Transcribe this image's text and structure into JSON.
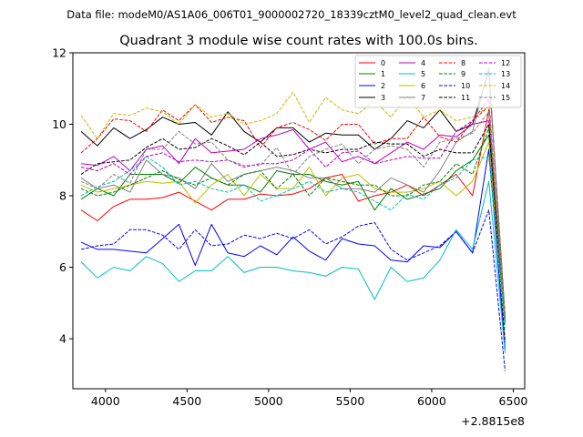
{
  "chart_data": {
    "type": "line",
    "file_label": "Data file: modeM0/AS1A06_006T01_9000002720_18339cztM0_level2_quad_clean.evt",
    "title": "Quadrant 3 module wise count rates with 100.0s bins.",
    "xlabel": "",
    "ylabel": "",
    "x_offset_label": "+2.8815e8",
    "xlim": [
      3800,
      6570
    ],
    "ylim": [
      2.6,
      12
    ],
    "x_ticks": [
      4000,
      4500,
      5000,
      5500,
      6000,
      6500
    ],
    "x_tick_labels": [
      "4000",
      "4500",
      "5000",
      "5500",
      "6000",
      "6500"
    ],
    "y_ticks": [
      4,
      6,
      8,
      10,
      12
    ],
    "y_tick_labels": [
      "4",
      "6",
      "8",
      "10",
      "12"
    ],
    "grid": false,
    "legend_position": "top-right",
    "x": [
      3850,
      3950,
      4050,
      4150,
      4250,
      4350,
      4450,
      4550,
      4650,
      4750,
      4850,
      4950,
      5050,
      5150,
      5250,
      5350,
      5450,
      5550,
      5650,
      5750,
      5850,
      5950,
      6050,
      6150,
      6250,
      6350,
      6450
    ],
    "series": [
      {
        "name": "0",
        "color": "#ff0000",
        "dash": "solid",
        "values": [
          7.6,
          7.3,
          7.7,
          7.9,
          7.9,
          7.95,
          8.1,
          7.85,
          7.6,
          7.9,
          7.9,
          8.05,
          8.0,
          8.05,
          8.2,
          8.5,
          8.6,
          7.85,
          8.0,
          8.1,
          8.3,
          8.0,
          8.3,
          8.6,
          8.0,
          10.4,
          4.5
        ]
      },
      {
        "name": "1",
        "color": "#008000",
        "dash": "solid",
        "values": [
          7.9,
          8.2,
          8.0,
          8.6,
          8.6,
          8.6,
          8.35,
          8.8,
          8.5,
          8.3,
          8.3,
          8.1,
          8.7,
          8.6,
          8.6,
          8.4,
          8.3,
          8.4,
          7.6,
          8.2,
          7.9,
          8.05,
          8.2,
          8.7,
          9.0,
          9.7,
          4.5
        ]
      },
      {
        "name": "2",
        "color": "#0000ff",
        "dash": "solid",
        "values": [
          6.7,
          6.5,
          6.5,
          6.45,
          6.4,
          6.8,
          7.2,
          6.05,
          7.2,
          6.4,
          6.3,
          6.6,
          6.35,
          6.85,
          6.45,
          6.2,
          6.8,
          6.65,
          6.6,
          6.2,
          6.15,
          6.6,
          6.55,
          7.0,
          6.4,
          9.3,
          3.7
        ]
      },
      {
        "name": "3",
        "color": "#000000",
        "dash": "solid",
        "values": [
          9.8,
          9.4,
          9.9,
          9.6,
          9.85,
          10.2,
          10.0,
          10.05,
          9.7,
          10.35,
          9.8,
          9.5,
          9.9,
          9.9,
          9.5,
          9.75,
          9.7,
          9.7,
          9.3,
          9.6,
          10.1,
          9.9,
          10.4,
          9.8,
          10.0,
          11.5,
          4.6
        ]
      },
      {
        "name": "4",
        "color": "#bf00bf",
        "dash": "solid",
        "values": [
          8.9,
          8.85,
          9.1,
          8.7,
          9.3,
          9.4,
          8.9,
          9.6,
          9.2,
          9.25,
          9.3,
          9.6,
          9.7,
          9.85,
          9.3,
          9.5,
          8.95,
          9.1,
          8.9,
          9.2,
          9.5,
          9.3,
          9.7,
          9.65,
          10.0,
          10.1,
          4.6
        ]
      },
      {
        "name": "5",
        "color": "#00bfbf",
        "dash": "solid",
        "values": [
          6.15,
          5.7,
          6.0,
          5.9,
          6.3,
          6.1,
          5.6,
          5.9,
          5.9,
          6.3,
          5.85,
          6.0,
          6.0,
          5.9,
          5.85,
          5.75,
          6.0,
          5.95,
          5.1,
          6.0,
          5.6,
          5.7,
          6.2,
          7.05,
          6.5,
          8.4,
          3.6
        ]
      },
      {
        "name": "6",
        "color": "#bfbf00",
        "dash": "solid",
        "values": [
          8.3,
          8.1,
          8.2,
          8.3,
          8.4,
          8.35,
          8.4,
          7.8,
          8.3,
          8.6,
          8.0,
          8.6,
          8.2,
          8.2,
          8.8,
          8.0,
          8.5,
          8.6,
          8.2,
          8.1,
          8.1,
          8.2,
          8.4,
          8.0,
          8.4,
          9.5,
          4.4
        ]
      },
      {
        "name": "7",
        "color": "#808080",
        "dash": "solid",
        "values": [
          8.5,
          8.2,
          8.3,
          8.1,
          9.0,
          8.6,
          8.5,
          8.2,
          8.9,
          8.4,
          8.6,
          8.7,
          8.8,
          8.7,
          8.5,
          8.5,
          8.2,
          8.2,
          8.1,
          8.5,
          8.3,
          8.1,
          8.7,
          9.5,
          9.8,
          11.6,
          4.5
        ]
      },
      {
        "name": "8",
        "color": "#ff0000",
        "dash": "dashed",
        "values": [
          9.2,
          9.6,
          10.15,
          10.1,
          9.8,
          10.4,
          10.1,
          10.55,
          10.05,
          10.2,
          10.1,
          9.35,
          9.9,
          10.05,
          9.85,
          9.55,
          10.0,
          10.0,
          9.45,
          9.6,
          9.6,
          10.2,
          9.65,
          9.5,
          10.1,
          10.5,
          4.5
        ]
      },
      {
        "name": "9",
        "color": "#008000",
        "dash": "dashed",
        "values": [
          8.2,
          8.0,
          8.1,
          8.3,
          8.5,
          8.7,
          8.45,
          8.3,
          8.5,
          8.3,
          8.6,
          8.7,
          8.2,
          8.6,
          8.0,
          8.5,
          8.4,
          8.3,
          8.3,
          8.0,
          8.0,
          8.3,
          8.4,
          8.9,
          8.6,
          9.9,
          4.4
        ]
      },
      {
        "name": "10",
        "color": "#0000ff",
        "dash": "dashed",
        "values": [
          6.5,
          6.6,
          6.65,
          7.05,
          7.05,
          6.9,
          6.5,
          7.05,
          6.6,
          6.65,
          6.9,
          6.8,
          6.95,
          6.8,
          7.05,
          6.65,
          6.85,
          7.15,
          7.25,
          6.5,
          6.2,
          6.4,
          6.6,
          7.0,
          6.4,
          7.6,
          3.1
        ]
      },
      {
        "name": "11",
        "color": "#000000",
        "dash": "dashed",
        "values": [
          8.6,
          8.9,
          8.95,
          9.0,
          9.35,
          9.6,
          9.3,
          9.35,
          9.6,
          9.4,
          9.15,
          9.5,
          9.1,
          9.15,
          9.3,
          9.2,
          9.3,
          9.3,
          9.5,
          9.45,
          9.45,
          9.1,
          9.3,
          9.2,
          9.2,
          10.0,
          3.9
        ]
      },
      {
        "name": "12",
        "color": "#bf00bf",
        "dash": "dashed",
        "values": [
          8.8,
          8.7,
          8.9,
          8.6,
          9.1,
          9.2,
          8.95,
          9.0,
          8.95,
          9.0,
          8.8,
          8.9,
          8.9,
          9.0,
          9.3,
          8.8,
          9.2,
          9.25,
          8.9,
          9.0,
          9.1,
          9.05,
          9.05,
          9.8,
          10.1,
          10.7,
          4.5
        ]
      },
      {
        "name": "13",
        "color": "#00bfbf",
        "dash": "dashed",
        "values": [
          8.0,
          8.25,
          8.4,
          8.7,
          9.1,
          8.8,
          8.3,
          8.4,
          8.2,
          8.1,
          8.3,
          7.85,
          8.0,
          8.2,
          8.4,
          8.1,
          8.2,
          8.1,
          7.85,
          7.6,
          8.05,
          7.9,
          8.3,
          8.5,
          9.0,
          9.1,
          4.3
        ]
      },
      {
        "name": "14",
        "color": "#bfbf00",
        "dash": "dashed",
        "values": [
          10.25,
          9.6,
          10.3,
          10.25,
          10.45,
          10.35,
          10.0,
          10.55,
          10.2,
          10.3,
          10.0,
          10.1,
          10.3,
          10.9,
          10.05,
          10.75,
          10.4,
          10.3,
          10.65,
          10.2,
          10.8,
          10.2,
          10.4,
          10.1,
          10.2,
          10.5,
          4.6
        ]
      },
      {
        "name": "15",
        "color": "#808080",
        "dash": "dashed",
        "values": [
          8.4,
          8.2,
          8.6,
          8.35,
          9.3,
          9.3,
          9.8,
          9.45,
          9.5,
          9.0,
          8.85,
          8.85,
          9.35,
          8.6,
          9.1,
          9.3,
          9.45,
          8.9,
          9.3,
          9.4,
          9.3,
          8.8,
          9.5,
          9.6,
          9.75,
          10.35,
          4.5
        ]
      }
    ]
  }
}
